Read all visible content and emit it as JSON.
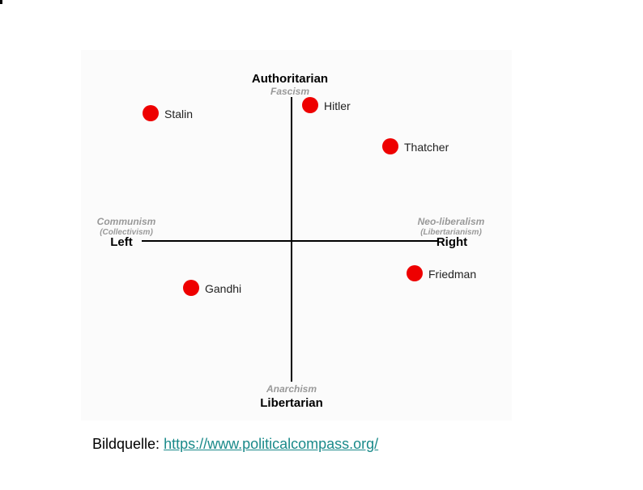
{
  "diagram": {
    "top": {
      "label": "Authoritarian",
      "note": "Fascism"
    },
    "bottom": {
      "label": "Libertarian",
      "note": "Anarchism"
    },
    "left": {
      "label": "Left",
      "note": "Communism",
      "subnote": "(Collectivism)"
    },
    "right": {
      "label": "Right",
      "note": "Neo-liberalism",
      "subnote": "(Libertarianism)"
    },
    "points": [
      {
        "label": "Stalin"
      },
      {
        "label": "Hitler"
      },
      {
        "label": "Thatcher"
      },
      {
        "label": "Gandhi"
      },
      {
        "label": "Friedman"
      }
    ]
  },
  "caption": {
    "label": "Bildquelle:",
    "link": "https://www.politicalcompass.org/"
  }
}
